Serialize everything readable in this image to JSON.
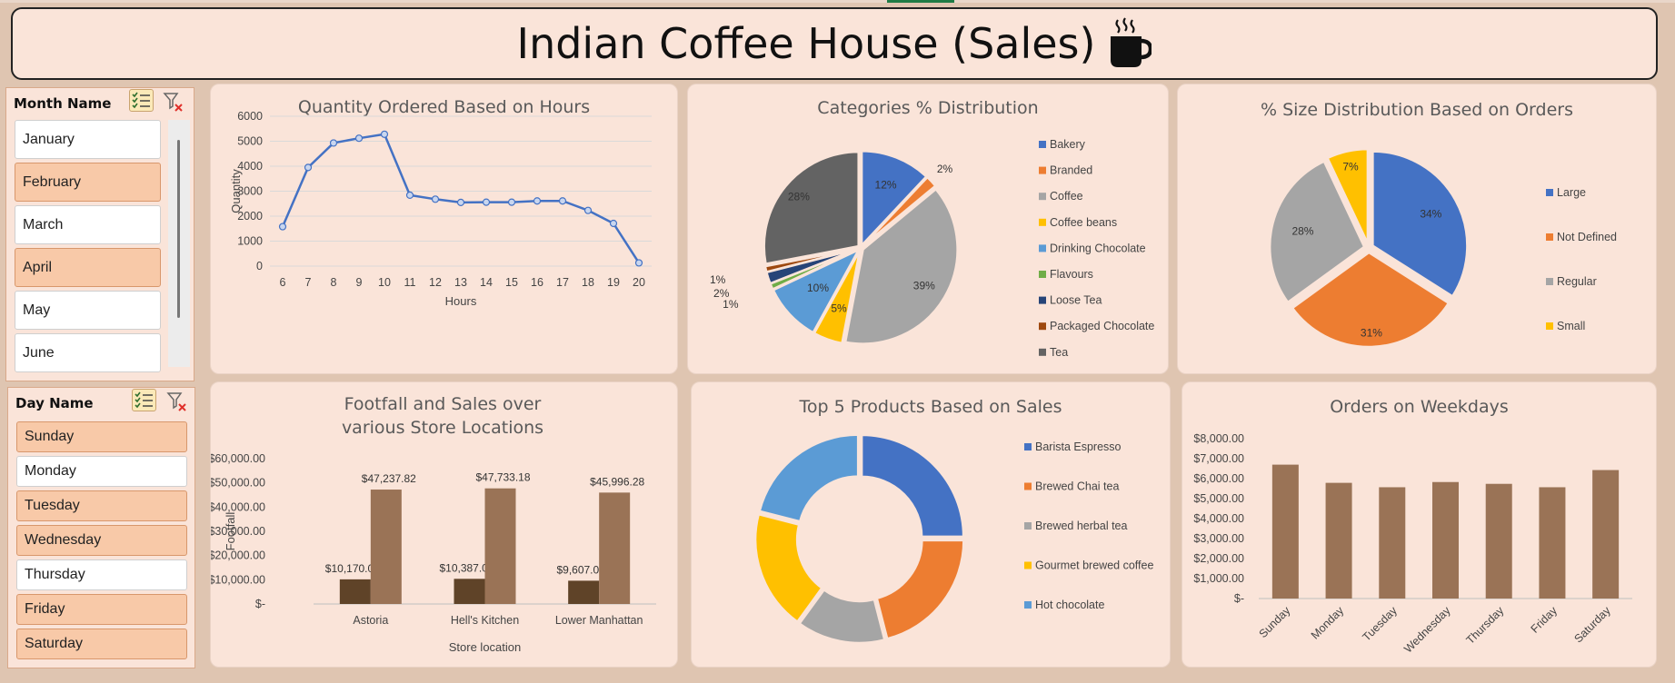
{
  "header": {
    "title": "Indian Coffee House (Sales)",
    "icon": "coffee-cup-icon"
  },
  "month_slicer": {
    "title": "Month Name",
    "items": [
      {
        "label": "January",
        "selected": false
      },
      {
        "label": "February",
        "selected": true
      },
      {
        "label": "March",
        "selected": false
      },
      {
        "label": "April",
        "selected": true
      },
      {
        "label": "May",
        "selected": false
      },
      {
        "label": "June",
        "selected": false
      }
    ]
  },
  "day_slicer": {
    "title": "Day Name",
    "items": [
      {
        "label": "Sunday",
        "selected": true
      },
      {
        "label": "Monday",
        "selected": false
      },
      {
        "label": "Tuesday",
        "selected": true
      },
      {
        "label": "Wednesday",
        "selected": true
      },
      {
        "label": "Thursday",
        "selected": false
      },
      {
        "label": "Friday",
        "selected": true
      },
      {
        "label": "Saturday",
        "selected": true
      }
    ]
  },
  "chart_data": [
    {
      "id": "hours",
      "type": "line",
      "title": "Quantity Ordered Based on Hours",
      "xlabel": "Hours",
      "ylabel": "Quantity",
      "x": [
        6,
        7,
        8,
        9,
        10,
        11,
        12,
        13,
        14,
        15,
        16,
        17,
        18,
        19,
        20
      ],
      "y": [
        1580,
        3950,
        4930,
        5120,
        5280,
        2840,
        2680,
        2550,
        2560,
        2560,
        2610,
        2610,
        2230,
        1710,
        130
      ],
      "ylim": [
        0,
        6000
      ],
      "yticks": [
        "0",
        "1000",
        "2000",
        "3000",
        "4000",
        "5000",
        "6000"
      ],
      "grid": true,
      "color": "#4472c4"
    },
    {
      "id": "categories",
      "type": "pie",
      "title": "Categories % Distribution",
      "labels": [
        "Bakery",
        "Branded",
        "Coffee",
        "Coffee beans",
        "Drinking Chocolate",
        "Flavours",
        "Loose Tea",
        "Packaged Chocolate",
        "Tea"
      ],
      "values": [
        12,
        2,
        39,
        5,
        10,
        1,
        2,
        1,
        28
      ],
      "value_labels": [
        "12%",
        "2%",
        "39%",
        "5%",
        "10%",
        "1%",
        "2%",
        "1%",
        "28%"
      ],
      "colors": [
        "#4472c4",
        "#ed7d31",
        "#a5a5a5",
        "#ffc000",
        "#5b9bd5",
        "#70ad47",
        "#264478",
        "#9e480e",
        "#636363"
      ],
      "legend": "right"
    },
    {
      "id": "sizes",
      "type": "pie",
      "title": "% Size Distribution Based on Orders",
      "labels": [
        "Large",
        "Not Defined",
        "Regular",
        "Small"
      ],
      "values": [
        34,
        31,
        28,
        7
      ],
      "value_labels": [
        "34%",
        "31%",
        "28%",
        "7%"
      ],
      "colors": [
        "#4472c4",
        "#ed7d31",
        "#a5a5a5",
        "#ffc000"
      ],
      "legend": "right"
    },
    {
      "id": "stores",
      "type": "bar",
      "title": "Footfall and Sales over various Store Locations",
      "categories": [
        "Astoria",
        "Hell's Kitchen",
        "Lower Manhattan"
      ],
      "series": [
        {
          "values": [
            10170,
            10387,
            9607
          ],
          "labels": [
            "$10,170.00",
            "$10,387.00",
            "$9,607.00"
          ],
          "color": "#5f4328"
        },
        {
          "values": [
            47237.82,
            47733.18,
            45996.28
          ],
          "labels": [
            "$47,237.82",
            "$47,733.18",
            "$45,996.28"
          ],
          "color": "#9a7356"
        }
      ],
      "xlabel": "Store location",
      "ylabel": "Footfall",
      "ylim": [
        0,
        60000
      ],
      "yticks": [
        "$-",
        "$10,000.00",
        "$20,000.00",
        "$30,000.00",
        "$40,000.00",
        "$50,000.00",
        "$60,000.00"
      ]
    },
    {
      "id": "products",
      "type": "pie",
      "subtype": "donut",
      "title": "Top 5 Products Based on Sales",
      "labels": [
        "Barista Espresso",
        "Brewed Chai tea",
        "Brewed herbal tea",
        "Gourmet brewed coffee",
        "Hot chocolate"
      ],
      "values": [
        25,
        21,
        14,
        19,
        21
      ],
      "colors": [
        "#4472c4",
        "#ed7d31",
        "#a5a5a5",
        "#ffc000",
        "#5b9bd5"
      ],
      "legend": "right"
    },
    {
      "id": "weekdays",
      "type": "bar",
      "title": "Orders on Weekdays",
      "categories": [
        "Sunday",
        "Monday",
        "Tuesday",
        "Wednesday",
        "Thursday",
        "Friday",
        "Saturday"
      ],
      "values": [
        6700,
        5790,
        5570,
        5830,
        5740,
        5570,
        6430
      ],
      "ylim": [
        0,
        8000
      ],
      "yticks": [
        "$-",
        "$1,000.00",
        "$2,000.00",
        "$3,000.00",
        "$4,000.00",
        "$5,000.00",
        "$6,000.00",
        "$7,000.00",
        "$8,000.00"
      ],
      "color": "#9a7356"
    }
  ]
}
